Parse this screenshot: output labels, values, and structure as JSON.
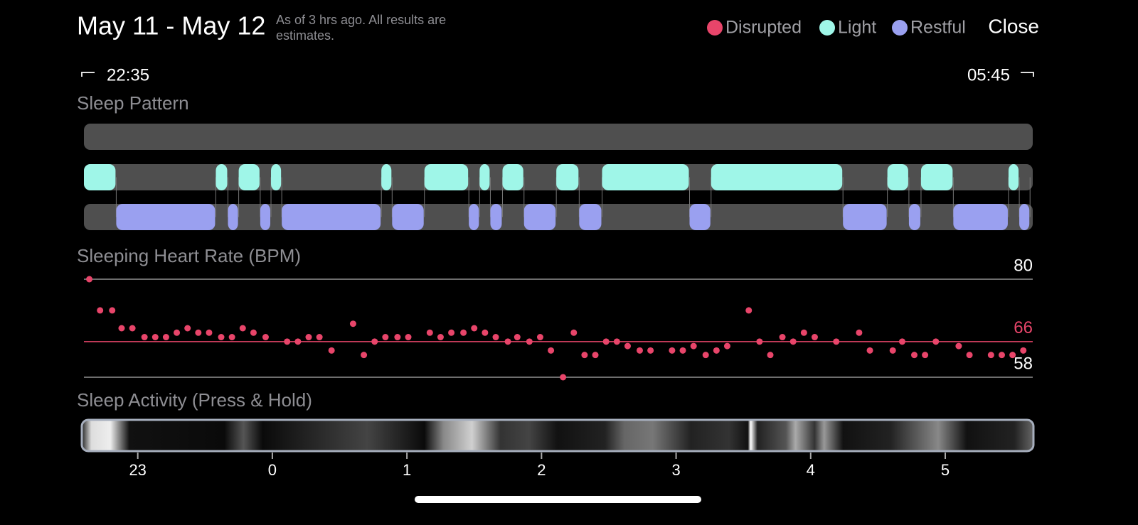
{
  "header": {
    "title": "May 11 - May 12",
    "subtitle": "As of 3 hrs ago. All results are estimates.",
    "close": "Close"
  },
  "time_range": {
    "start": "22:35",
    "end": "05:45"
  },
  "xlim": [
    22.6,
    29.65
  ],
  "sleep_pattern": {
    "title": "Sleep Pattern",
    "rows": [
      {
        "name": "Disrupted",
        "color": "#e8456a",
        "segments": []
      },
      {
        "name": "Light",
        "color": "#9ff6e8",
        "segments": [
          [
            22.6,
            22.84
          ],
          [
            23.58,
            23.67
          ],
          [
            23.75,
            23.91
          ],
          [
            23.99,
            24.07
          ],
          [
            24.81,
            24.89
          ],
          [
            25.13,
            25.46
          ],
          [
            25.54,
            25.62
          ],
          [
            25.71,
            25.87
          ],
          [
            26.11,
            26.28
          ],
          [
            26.45,
            27.1
          ],
          [
            27.26,
            28.24
          ],
          [
            28.57,
            28.73
          ],
          [
            28.82,
            29.06
          ],
          [
            29.47,
            29.55
          ]
        ]
      },
      {
        "name": "Restful",
        "color": "#9aa0f0",
        "segments": [
          [
            22.84,
            23.58
          ],
          [
            23.67,
            23.75
          ],
          [
            23.91,
            23.99
          ],
          [
            24.07,
            24.81
          ],
          [
            24.89,
            25.13
          ],
          [
            25.46,
            25.54
          ],
          [
            25.62,
            25.71
          ],
          [
            25.87,
            26.11
          ],
          [
            26.28,
            26.45
          ],
          [
            27.1,
            27.26
          ],
          [
            28.24,
            28.57
          ],
          [
            28.73,
            28.82
          ],
          [
            29.06,
            29.47
          ],
          [
            29.55,
            29.63
          ]
        ]
      }
    ]
  },
  "heart_rate": {
    "title": "Sleeping Heart Rate (BPM)",
    "color": "#e8456a",
    "ylim": [
      58,
      80
    ],
    "yticks": [
      80,
      58
    ],
    "average": 66,
    "x": [
      22.64,
      22.72,
      22.81,
      22.88,
      22.96,
      23.05,
      23.13,
      23.21,
      23.29,
      23.37,
      23.45,
      23.53,
      23.62,
      23.7,
      23.78,
      23.86,
      23.95,
      24.11,
      24.19,
      24.27,
      24.35,
      24.44,
      24.6,
      24.68,
      24.76,
      24.84,
      24.93,
      25.01,
      25.17,
      25.25,
      25.33,
      25.42,
      25.5,
      25.58,
      25.66,
      25.75,
      25.82,
      25.91,
      25.99,
      26.07,
      26.16,
      26.24,
      26.32,
      26.4,
      26.48,
      26.56,
      26.64,
      26.73,
      26.81,
      26.97,
      27.05,
      27.13,
      27.22,
      27.3,
      27.38,
      27.54,
      27.62,
      27.7,
      27.79,
      27.87,
      27.95,
      28.03,
      28.19,
      28.36,
      28.44,
      28.61,
      28.68,
      28.77,
      28.85,
      28.93,
      29.1,
      29.18,
      29.34,
      29.42,
      29.5,
      29.58
    ],
    "values": [
      80,
      73,
      73,
      69,
      69,
      67,
      67,
      67,
      68,
      69,
      68,
      68,
      67,
      67,
      69,
      68,
      67,
      66,
      66,
      67,
      67,
      64,
      70,
      63,
      66,
      67,
      67,
      67,
      68,
      67,
      68,
      68,
      69,
      68,
      67,
      66,
      67,
      66,
      67,
      64,
      58,
      68,
      63,
      63,
      66,
      66,
      65,
      64,
      64,
      64,
      64,
      65,
      63,
      64,
      65,
      73,
      66,
      63,
      67,
      66,
      68,
      67,
      66,
      68,
      64,
      64,
      66,
      63,
      63,
      66,
      65,
      63,
      63,
      63,
      63,
      64
    ]
  },
  "activity": {
    "title": "Sleep Activity (Press & Hold)",
    "xticks": [
      23,
      {
        "value": 24,
        "label": "0"
      },
      {
        "value": 25,
        "label": "1"
      },
      {
        "value": 26,
        "label": "2"
      },
      {
        "value": 27,
        "label": "3"
      },
      {
        "value": 28,
        "label": "4"
      },
      {
        "value": 29,
        "label": "5"
      }
    ]
  }
}
